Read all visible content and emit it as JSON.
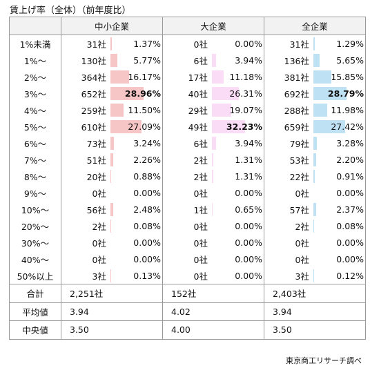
{
  "title": "賃上げ率（全体）（前年度比）",
  "source": "東京商工リサーチ調べ",
  "table": {
    "header": [
      "中小企業",
      "大企業",
      "全企業"
    ],
    "rows": [
      {
        "label": "1%未満",
        "cells": [
          [
            "31社",
            "1.37%"
          ],
          [
            "0社",
            "0.00%"
          ],
          [
            "31社",
            "1.29%"
          ]
        ]
      },
      {
        "label": "1%～",
        "cells": [
          [
            "130社",
            "5.77%"
          ],
          [
            "6社",
            "3.94%"
          ],
          [
            "136社",
            "5.65%"
          ]
        ]
      },
      {
        "label": "2%～",
        "cells": [
          [
            "364社",
            "16.17%"
          ],
          [
            "17社",
            "11.18%"
          ],
          [
            "381社",
            "15.85%"
          ]
        ]
      },
      {
        "label": "3%～",
        "cells": [
          [
            "652社",
            "28.96%"
          ],
          [
            "40社",
            "26.31%"
          ],
          [
            "692社",
            "28.79%"
          ]
        ]
      },
      {
        "label": "4%～",
        "cells": [
          [
            "259社",
            "11.50%"
          ],
          [
            "29社",
            "19.07%"
          ],
          [
            "288社",
            "11.98%"
          ]
        ]
      },
      {
        "label": "5%～",
        "cells": [
          [
            "610社",
            "27.09%"
          ],
          [
            "49社",
            "32.23%"
          ],
          [
            "659社",
            "27.42%"
          ]
        ]
      },
      {
        "label": "6%～",
        "cells": [
          [
            "73社",
            "3.24%"
          ],
          [
            "6社",
            "3.94%"
          ],
          [
            "79社",
            "3.28%"
          ]
        ]
      },
      {
        "label": "7%～",
        "cells": [
          [
            "51社",
            "2.26%"
          ],
          [
            "2社",
            "1.31%"
          ],
          [
            "53社",
            "2.20%"
          ]
        ]
      },
      {
        "label": "8%～",
        "cells": [
          [
            "20社",
            "0.88%"
          ],
          [
            "2社",
            "1.31%"
          ],
          [
            "22社",
            "0.91%"
          ]
        ]
      },
      {
        "label": "9%～",
        "cells": [
          [
            "0社",
            "0.00%"
          ],
          [
            "0社",
            "0.00%"
          ],
          [
            "0社",
            "0.00%"
          ]
        ]
      },
      {
        "label": "10%～",
        "cells": [
          [
            "56社",
            "2.48%"
          ],
          [
            "1社",
            "0.65%"
          ],
          [
            "57社",
            "2.37%"
          ]
        ]
      },
      {
        "label": "20%～",
        "cells": [
          [
            "2社",
            "0.08%"
          ],
          [
            "0社",
            "0.00%"
          ],
          [
            "2社",
            "0.08%"
          ]
        ]
      },
      {
        "label": "30%～",
        "cells": [
          [
            "0社",
            "0.00%"
          ],
          [
            "0社",
            "0.00%"
          ],
          [
            "0社",
            "0.00%"
          ]
        ]
      },
      {
        "label": "40%～",
        "cells": [
          [
            "0社",
            "0.00%"
          ],
          [
            "0社",
            "0.00%"
          ],
          [
            "0社",
            "0.00%"
          ]
        ]
      },
      {
        "label": "50%以上",
        "cells": [
          [
            "3社",
            "0.13%"
          ],
          [
            "0社",
            "0.00%"
          ],
          [
            "3社",
            "0.12%"
          ]
        ]
      }
    ],
    "summary": [
      {
        "label": "合計",
        "cells": [
          "2,251社",
          "152社",
          "2,403社"
        ]
      },
      {
        "label": "平均値",
        "cells": [
          "3.94",
          "4.02",
          "3.94"
        ]
      },
      {
        "label": "中央値",
        "cells": [
          "3.50",
          "4.00",
          "3.50"
        ]
      }
    ],
    "bar_colors": [
      "#f6c6c6",
      "#fbdcf6",
      "#bfe1f4"
    ]
  }
}
